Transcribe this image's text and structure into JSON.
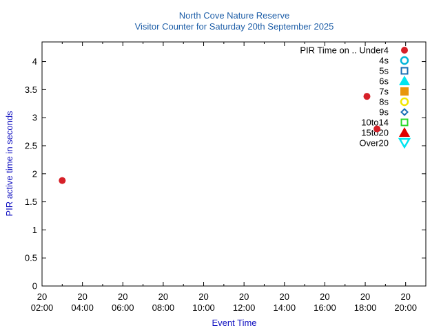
{
  "chart_data": {
    "type": "scatter",
    "title": "North Cove Nature Reserve",
    "subtitle": "Visitor Counter for Saturday 20th September 2025",
    "xlabel": "Event Time",
    "ylabel": "PIR active time in seconds",
    "xlim": [
      "02:00",
      "21:00"
    ],
    "ylim": [
      0,
      4.35
    ],
    "x_ticks": [
      {
        "day": "20",
        "time": "02:00"
      },
      {
        "day": "20",
        "time": "04:00"
      },
      {
        "day": "20",
        "time": "06:00"
      },
      {
        "day": "20",
        "time": "08:00"
      },
      {
        "day": "20",
        "time": "10:00"
      },
      {
        "day": "20",
        "time": "12:00"
      },
      {
        "day": "20",
        "time": "14:00"
      },
      {
        "day": "20",
        "time": "16:00"
      },
      {
        "day": "20",
        "time": "18:00"
      },
      {
        "day": "20",
        "time": "20:00"
      }
    ],
    "y_ticks": [
      "0",
      "0.5",
      "1",
      "1.5",
      "2",
      "2.5",
      "3",
      "3.5",
      "4"
    ],
    "grid": false,
    "legend_position": "top-right",
    "legend_title": "PIR Time on ..",
    "series": [
      {
        "name": "Under4",
        "marker": "filled-circle",
        "color": "#d62028",
        "points": [
          {
            "x": "03:00",
            "y": 1.88
          },
          {
            "x": "18:05",
            "y": 3.38
          },
          {
            "x": "18:35",
            "y": 2.8
          }
        ]
      },
      {
        "name": "4s",
        "marker": "open-circle",
        "color": "#00b4d8",
        "points": []
      },
      {
        "name": "5s",
        "marker": "open-square",
        "color": "#1a6fb5",
        "points": []
      },
      {
        "name": "6s",
        "marker": "filled-triangle-up",
        "color": "#00e5f0",
        "points": []
      },
      {
        "name": "7s",
        "marker": "filled-square",
        "color": "#e8960c",
        "points": []
      },
      {
        "name": "8s",
        "marker": "open-circle",
        "color": "#f2e600",
        "points": []
      },
      {
        "name": "9s",
        "marker": "open-diamond",
        "color": "#1a6fb5",
        "points": []
      },
      {
        "name": "10to14",
        "marker": "open-square",
        "color": "#28d828",
        "points": []
      },
      {
        "name": "15to20",
        "marker": "filled-triangle-up",
        "color": "#e00000",
        "points": []
      },
      {
        "name": "Over20",
        "marker": "open-triangle-down",
        "color": "#00e5f0",
        "points": []
      }
    ]
  }
}
